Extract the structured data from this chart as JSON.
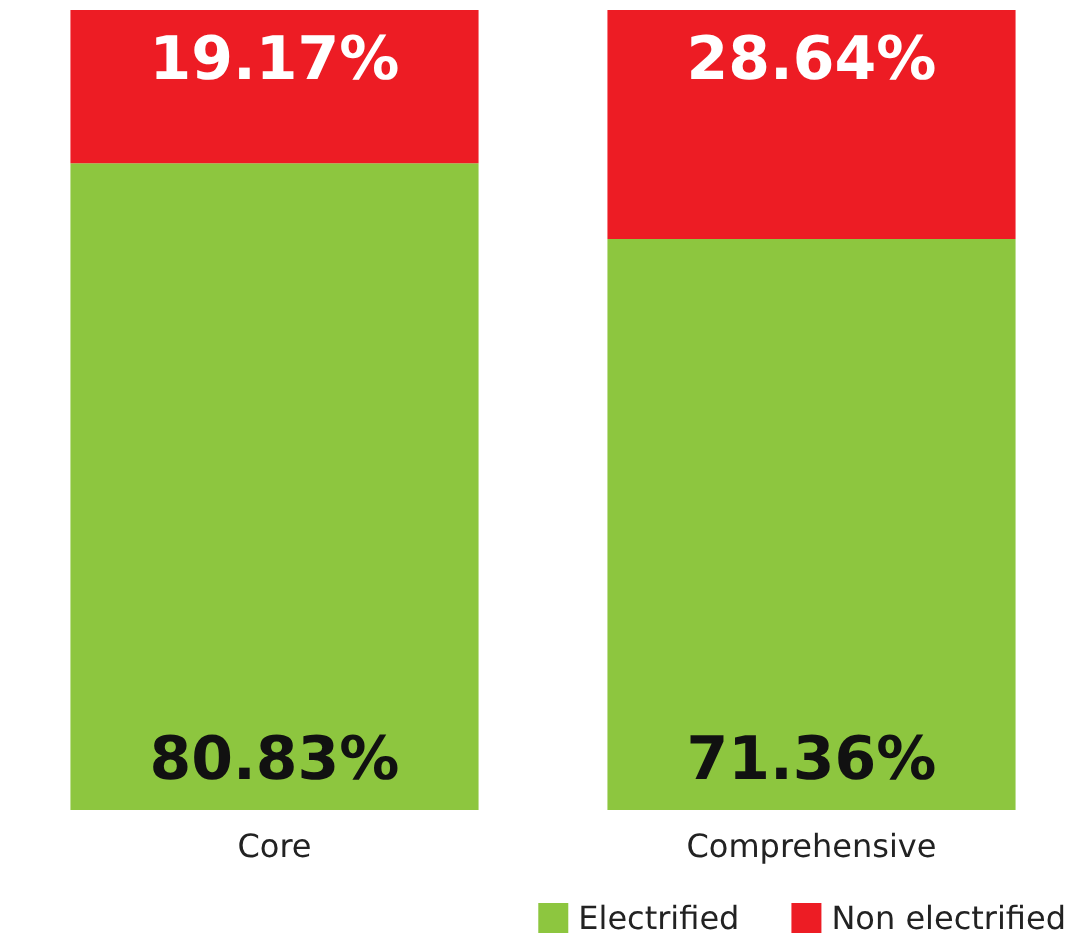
{
  "chart_data": {
    "type": "bar",
    "stacked": true,
    "categories": [
      "Core",
      "Comprehensive"
    ],
    "legend": "bottom right",
    "series": [
      {
        "name": "Electrified",
        "color": "#8dc63f",
        "values": [
          80.83,
          71.36
        ],
        "value_labels": [
          "80.83%",
          "71.36%"
        ]
      },
      {
        "name": "Non electrified",
        "color": "#ed1c24",
        "values": [
          19.17,
          28.64
        ],
        "value_labels": [
          "19.17%",
          "28.64%"
        ]
      }
    ]
  }
}
